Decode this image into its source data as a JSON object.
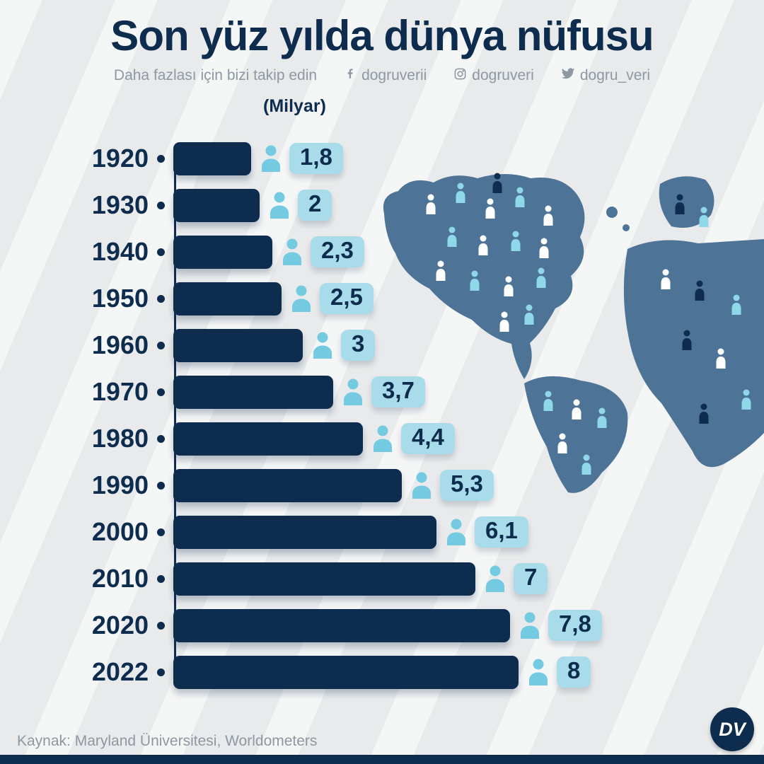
{
  "header": {
    "title": "Son yüz yılda dünya nüfusu",
    "subtitle": "Daha fazlası için bizi takip edin",
    "socials": [
      {
        "name": "facebook",
        "handle": "dogruverii"
      },
      {
        "name": "instagram",
        "handle": "dogruveri"
      },
      {
        "name": "twitter",
        "handle": "dogru_veri"
      }
    ],
    "unit_label": "(Milyar)"
  },
  "chart_data": {
    "type": "bar",
    "orientation": "horizontal",
    "title": "Son yüz yılda dünya nüfusu",
    "unit": "Milyar",
    "categories": [
      "1920",
      "1930",
      "1940",
      "1950",
      "1960",
      "1970",
      "1980",
      "1990",
      "2000",
      "2010",
      "2020",
      "2022"
    ],
    "values": [
      1.8,
      2,
      2.3,
      2.5,
      3,
      3.7,
      4.4,
      5.3,
      6.1,
      7,
      7.8,
      8
    ],
    "value_labels": [
      "1,8",
      "2",
      "2,3",
      "2,5",
      "3",
      "3,7",
      "4,4",
      "5,3",
      "6,1",
      "7",
      "7,8",
      "8"
    ],
    "xlim": [
      0,
      8
    ],
    "grid": false,
    "legend": false
  },
  "footer": {
    "source": "Kaynak: Maryland Üniversitesi, Worldometers",
    "logo_text": "DV"
  },
  "colors": {
    "navy": "#0e2c4e",
    "badge": "#a9dcea",
    "person": "#74cbe1",
    "map": "#4d7396",
    "map_person_light": "#8fd8ea",
    "background": "#e8eaeb",
    "muted_text": "#8e98a3"
  }
}
